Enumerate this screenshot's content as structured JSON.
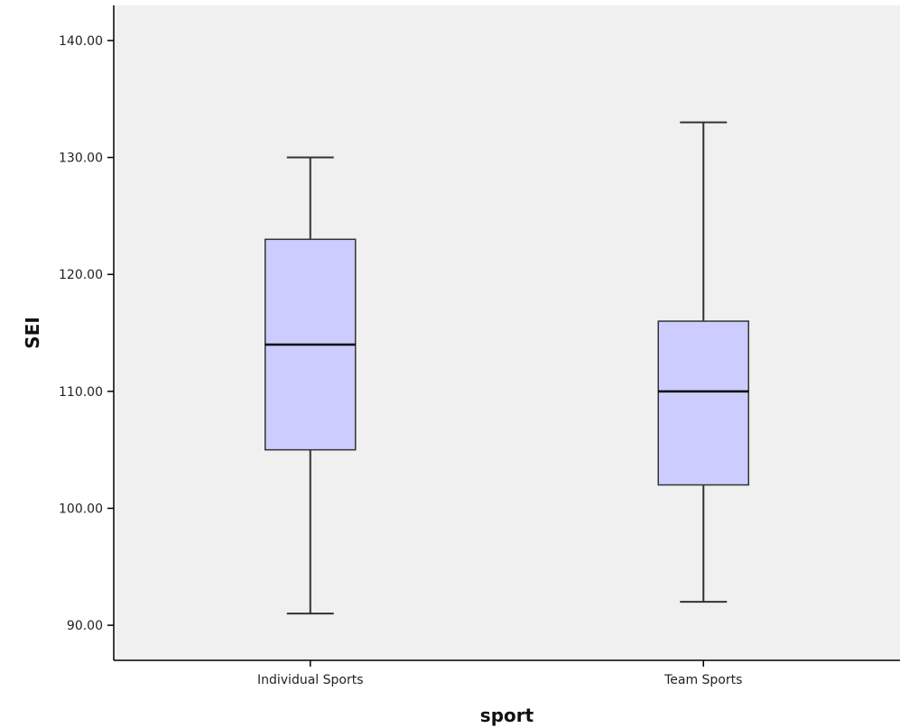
{
  "chart_data": {
    "type": "boxplot",
    "xlabel": "sport",
    "ylabel": "SEI",
    "ylim": [
      87,
      143
    ],
    "yticks": [
      "90.00",
      "100.00",
      "110.00",
      "120.00",
      "130.00",
      "140.00"
    ],
    "categories": [
      "Individual Sports",
      "Team Sports"
    ],
    "boxes": [
      {
        "category": "Individual Sports",
        "min": 91,
        "q1": 105,
        "median": 114,
        "q3": 123,
        "max": 130
      },
      {
        "category": "Team Sports",
        "min": 92,
        "q1": 102,
        "median": 110,
        "q3": 116,
        "max": 133
      }
    ],
    "grid": false,
    "colors": {
      "plot_background": "#f0f0f0",
      "box_fill": "#ccccff",
      "box_stroke": "#333333",
      "median": "#000000",
      "axis": "#000000"
    }
  }
}
